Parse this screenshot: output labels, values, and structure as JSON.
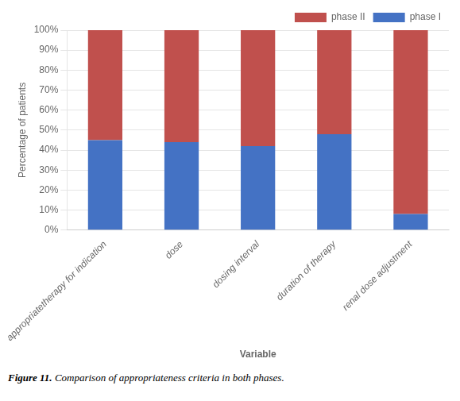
{
  "chart_data": {
    "type": "bar",
    "stacked": true,
    "categories": [
      "appropriatetherapy for indication",
      "dose",
      "dosing interval",
      "duration of therapy",
      "renal dose adjustment"
    ],
    "series": [
      {
        "name": "phase I",
        "color": "#4472C4",
        "values": [
          45,
          44,
          42,
          48,
          8
        ]
      },
      {
        "name": "phase II",
        "color": "#C0504D",
        "values": [
          55,
          56,
          58,
          52,
          92
        ]
      }
    ],
    "xlabel": "Variable",
    "ylabel": "Percentage of patients",
    "ylim": [
      0,
      100
    ],
    "yticks": [
      {
        "value": 0,
        "label": "0%"
      },
      {
        "value": 10,
        "label": "10%"
      },
      {
        "value": 20,
        "label": "20%"
      },
      {
        "value": 30,
        "label": "30%"
      },
      {
        "value": 40,
        "label": "40%"
      },
      {
        "value": 50,
        "label": "50%"
      },
      {
        "value": 60,
        "label": "60%"
      },
      {
        "value": 70,
        "label": "70%"
      },
      {
        "value": 80,
        "label": "80%"
      },
      {
        "value": 90,
        "label": "90%"
      },
      {
        "value": 100,
        "label": "100%"
      }
    ],
    "grid": true,
    "legend": "upper right",
    "annotations": [
      "Figure 11.",
      " Comparison of appropriateness criteria in both phases."
    ]
  }
}
